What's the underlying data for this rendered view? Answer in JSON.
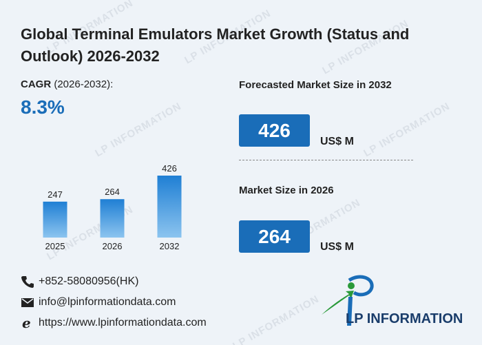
{
  "title": "Global Terminal Emulators Market Growth (Status and Outlook) 2026-2032",
  "cagr": {
    "label_bold": "CAGR",
    "label_rest": " (2026-2032):",
    "value": "8.3%"
  },
  "forecast": {
    "label": "Forecasted Market Size in 2032",
    "value": "426",
    "unit": "US$ M"
  },
  "current": {
    "label": "Market Size in 2026",
    "value": "264",
    "unit": "US$ M"
  },
  "contacts": {
    "phone": "+852-58080956(HK)",
    "email": "info@lpinformationdata.com",
    "website": "https://www.lpinformationdata.com"
  },
  "logo": {
    "text": "LP INFORMATION"
  },
  "watermark": "LP INFORMATION",
  "colors": {
    "accent": "#1a6db8",
    "bar_top": "#1f7fd4",
    "bar_bottom": "#8cc4ef",
    "logo_green": "#2a9a3a"
  },
  "chart_data": {
    "type": "bar",
    "categories": [
      "2025",
      "2026",
      "2032"
    ],
    "values": [
      247,
      264,
      426
    ],
    "title": "",
    "xlabel": "",
    "ylabel": "",
    "grid": false,
    "legend": "none"
  }
}
